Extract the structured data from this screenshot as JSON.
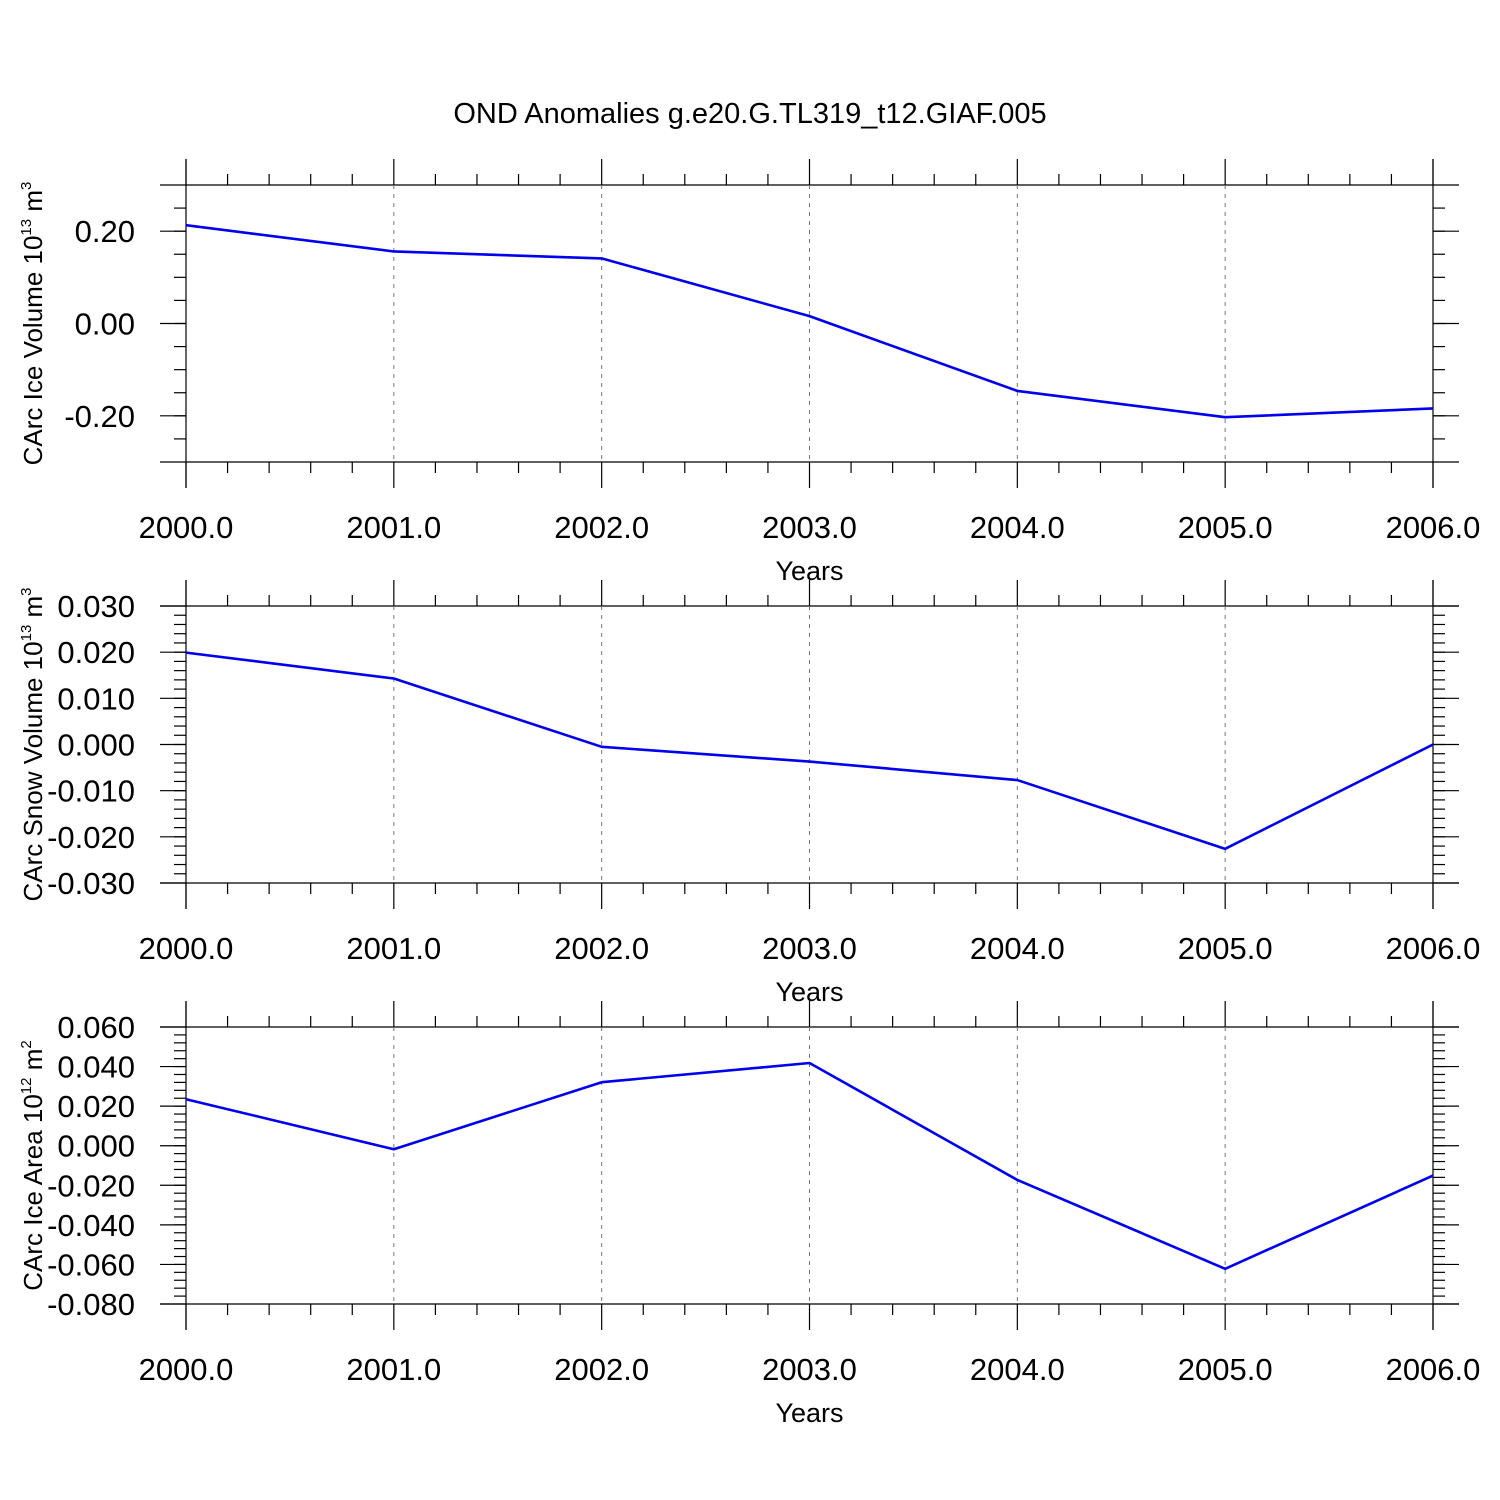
{
  "figure": {
    "title": "OND Anomalies g.e20.G.TL319_t12.GIAF.005",
    "line_color": "#0000ee"
  },
  "chart_data": [
    {
      "type": "line",
      "xlabel": "Years",
      "ylabel": {
        "text": "CArc Ice Volume 10",
        "sup": "13",
        "unit": " m",
        "unit_sup": "3"
      },
      "x": [
        2000,
        2001,
        2002,
        2003,
        2004,
        2005,
        2006
      ],
      "xlim": [
        2000,
        2006
      ],
      "xticks": [
        "2000.0",
        "2001.0",
        "2002.0",
        "2003.0",
        "2004.0",
        "2005.0",
        "2006.0"
      ],
      "ylim": [
        -0.3,
        0.3
      ],
      "yticks": [
        {
          "v": 0.2,
          "label": "0.20"
        },
        {
          "v": 0.0,
          "label": "0.00"
        },
        {
          "v": -0.2,
          "label": "-0.20"
        }
      ],
      "yminor_step": 0.05,
      "series": [
        {
          "values": [
            0.213,
            0.156,
            0.141,
            0.016,
            -0.146,
            -0.203,
            -0.184
          ]
        }
      ]
    },
    {
      "type": "line",
      "xlabel": "Years",
      "ylabel": {
        "text": "CArc Snow Volume 10",
        "sup": "13",
        "unit": " m",
        "unit_sup": "3"
      },
      "x": [
        2000,
        2001,
        2002,
        2003,
        2004,
        2005,
        2006
      ],
      "xlim": [
        2000,
        2006
      ],
      "xticks": [
        "2000.0",
        "2001.0",
        "2002.0",
        "2003.0",
        "2004.0",
        "2005.0",
        "2006.0"
      ],
      "ylim": [
        -0.03,
        0.03
      ],
      "yticks": [
        {
          "v": 0.03,
          "label": "0.030"
        },
        {
          "v": 0.02,
          "label": "0.020"
        },
        {
          "v": 0.01,
          "label": "0.010"
        },
        {
          "v": 0.0,
          "label": "0.000"
        },
        {
          "v": -0.01,
          "label": "-0.010"
        },
        {
          "v": -0.02,
          "label": "-0.020"
        },
        {
          "v": -0.03,
          "label": "-0.030"
        }
      ],
      "yminor_step": 0.002,
      "series": [
        {
          "values": [
            0.0199,
            0.0143,
            -0.0005,
            -0.0037,
            -0.0077,
            -0.0226,
            0.0
          ]
        }
      ]
    },
    {
      "type": "line",
      "xlabel": "Years",
      "ylabel": {
        "text": "CArc Ice Area 10",
        "sup": "12",
        "unit": " m",
        "unit_sup": "2"
      },
      "x": [
        2000,
        2001,
        2002,
        2003,
        2004,
        2005,
        2006
      ],
      "xlim": [
        2000,
        2006
      ],
      "xticks": [
        "2000.0",
        "2001.0",
        "2002.0",
        "2003.0",
        "2004.0",
        "2005.0",
        "2006.0"
      ],
      "ylim": [
        -0.08,
        0.06
      ],
      "yticks": [
        {
          "v": 0.06,
          "label": "0.060"
        },
        {
          "v": 0.04,
          "label": "0.040"
        },
        {
          "v": 0.02,
          "label": "0.020"
        },
        {
          "v": 0.0,
          "label": "0.000"
        },
        {
          "v": -0.02,
          "label": "-0.020"
        },
        {
          "v": -0.04,
          "label": "-0.040"
        },
        {
          "v": -0.06,
          "label": "-0.060"
        },
        {
          "v": -0.08,
          "label": "-0.080"
        }
      ],
      "yminor_step": 0.004,
      "series": [
        {
          "values": [
            0.0235,
            -0.0018,
            0.0321,
            0.0418,
            -0.0173,
            -0.0622,
            -0.0151
          ]
        }
      ]
    }
  ]
}
